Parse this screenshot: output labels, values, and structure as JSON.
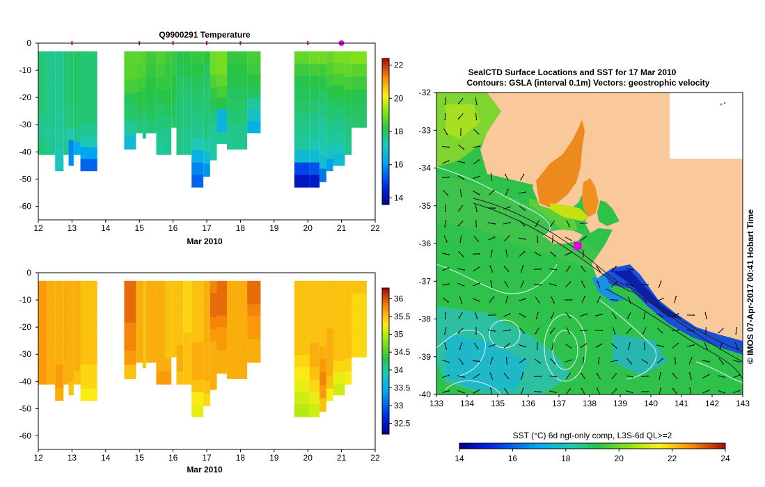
{
  "chart_data": [
    {
      "type": "heatmap",
      "title": "Q9900291  Temperature",
      "xlabel": "Mar 2010",
      "ylabel": "",
      "x_ticks": [
        "12",
        "13",
        "14",
        "15",
        "16",
        "17",
        "18",
        "19",
        "20",
        "21",
        "22"
      ],
      "y_ticks": [
        "0",
        "-10",
        "-20",
        "-30",
        "-40",
        "-50",
        "-60"
      ],
      "xlim": [
        12,
        22
      ],
      "ylim": [
        -65,
        0
      ],
      "profile_markers_day": [
        13,
        15,
        16,
        17,
        18,
        20,
        21
      ],
      "colorbar": {
        "ticks": [
          "14",
          "16",
          "18",
          "20",
          "22"
        ],
        "range": [
          13.6,
          22.4
        ]
      },
      "profiles": [
        {
          "x0": 12.0,
          "x1": 12.25,
          "bottom": -41,
          "values": [
            17.8,
            17.8,
            17.8,
            17.8,
            17.8,
            17.6,
            17.6,
            17.8
          ]
        },
        {
          "x0": 12.25,
          "x1": 12.5,
          "bottom": -41,
          "values": [
            17.6,
            17.6,
            17.6,
            17.6,
            17.6,
            17.6,
            17.5,
            17.6
          ]
        },
        {
          "x0": 12.5,
          "x1": 12.75,
          "bottom": -47,
          "values": [
            17.6,
            17.6,
            17.6,
            17.6,
            17.6,
            17.5,
            17.5,
            17.5,
            17.3,
            17.2
          ]
        },
        {
          "x0": 12.75,
          "x1": 12.9,
          "bottom": -41,
          "values": [
            17.8,
            17.8,
            17.8,
            17.8,
            17.7,
            17.7,
            17.5,
            17.6
          ]
        },
        {
          "x0": 12.9,
          "x1": 13.05,
          "bottom": -45,
          "values": [
            17.9,
            17.9,
            17.9,
            17.9,
            17.8,
            17.8,
            17.4,
            15.8,
            15.9
          ]
        },
        {
          "x0": 13.05,
          "x1": 13.25,
          "bottom": -41,
          "values": [
            17.9,
            17.9,
            17.9,
            17.9,
            17.8,
            17.8,
            17.6,
            16.3
          ]
        },
        {
          "x0": 13.25,
          "x1": 13.75,
          "bottom": -47,
          "values": [
            17.8,
            17.8,
            17.8,
            17.8,
            17.8,
            17.8,
            17.6,
            17.3,
            16.2,
            15.4
          ]
        },
        {
          "x0": 14.55,
          "x1": 14.9,
          "bottom": -39,
          "values": [
            18.7,
            18.7,
            18.5,
            18.0,
            17.9,
            17.5,
            16.8
          ]
        },
        {
          "x0": 14.9,
          "x1": 15.1,
          "bottom": -33,
          "values": [
            18.7,
            18.6,
            18.4,
            18.2,
            18.0,
            17.8
          ]
        },
        {
          "x0": 15.1,
          "x1": 15.2,
          "bottom": -35,
          "values": [
            18.6,
            18.6,
            18.4,
            18.2,
            18.0,
            17.8,
            17.6
          ]
        },
        {
          "x0": 15.2,
          "x1": 15.5,
          "bottom": -33,
          "values": [
            18.4,
            18.3,
            18.2,
            18.1,
            18.0,
            17.8
          ]
        },
        {
          "x0": 15.5,
          "x1": 15.75,
          "bottom": -41,
          "values": [
            18.6,
            18.5,
            18.3,
            18.1,
            17.9,
            17.8,
            17.6,
            17.5
          ]
        },
        {
          "x0": 15.75,
          "x1": 15.95,
          "bottom": -41,
          "values": [
            18.4,
            18.3,
            18.3,
            18.2,
            18.0,
            17.8,
            17.6,
            17.6
          ]
        },
        {
          "x0": 15.95,
          "x1": 16.1,
          "bottom": -31,
          "values": [
            18.3,
            18.3,
            18.2,
            18.1,
            18.0,
            17.9
          ]
        },
        {
          "x0": 16.1,
          "x1": 16.3,
          "bottom": -41,
          "values": [
            18.1,
            18.0,
            17.9,
            17.9,
            17.8,
            17.8,
            17.7,
            17.6
          ]
        },
        {
          "x0": 16.3,
          "x1": 16.55,
          "bottom": -41,
          "values": [
            18.2,
            18.1,
            17.9,
            17.8,
            17.7,
            17.7,
            17.6,
            17.6
          ]
        },
        {
          "x0": 16.55,
          "x1": 16.9,
          "bottom": -53,
          "values": [
            18.3,
            18.2,
            18.0,
            17.9,
            17.8,
            17.7,
            17.6,
            17.3,
            16.5,
            15.8,
            15.4
          ]
        },
        {
          "x0": 16.9,
          "x1": 17.1,
          "bottom": -49,
          "values": [
            18.2,
            18.0,
            17.9,
            17.8,
            17.8,
            17.8,
            17.7,
            17.4,
            16.8,
            16.0
          ]
        },
        {
          "x0": 17.1,
          "x1": 17.3,
          "bottom": -43,
          "values": [
            18.9,
            18.9,
            18.6,
            18.3,
            18.0,
            17.7,
            17.5,
            17.5,
            17.4
          ]
        },
        {
          "x0": 17.3,
          "x1": 17.6,
          "bottom": -37,
          "values": [
            19.0,
            19.0,
            18.8,
            18.5,
            18.2,
            16.6,
            16.6,
            17.5
          ]
        },
        {
          "x0": 17.6,
          "x1": 18.2,
          "bottom": -39,
          "values": [
            18.3,
            18.2,
            18.1,
            18.0,
            17.9,
            17.8,
            17.6,
            17.6
          ]
        },
        {
          "x0": 18.2,
          "x1": 18.6,
          "bottom": -33,
          "values": [
            18.5,
            18.4,
            18.2,
            18.0,
            17.5,
            17.0,
            16.5
          ]
        },
        {
          "x0": 19.6,
          "x1": 20.05,
          "bottom": -53,
          "values": [
            18.8,
            18.4,
            18.1,
            18.0,
            17.9,
            17.7,
            17.6,
            17.5,
            16.8,
            15.0,
            14.2
          ]
        },
        {
          "x0": 20.05,
          "x1": 20.35,
          "bottom": -53,
          "values": [
            18.9,
            18.5,
            18.2,
            18.0,
            17.8,
            17.6,
            17.5,
            17.3,
            16.8,
            15.2,
            14.3
          ]
        },
        {
          "x0": 20.35,
          "x1": 20.55,
          "bottom": -51,
          "values": [
            18.9,
            18.4,
            18.1,
            17.9,
            17.7,
            17.5,
            17.4,
            17.3,
            16.9,
            15.6
          ]
        },
        {
          "x0": 20.55,
          "x1": 20.75,
          "bottom": -47,
          "values": [
            18.8,
            18.6,
            18.4,
            18.1,
            17.9,
            17.8,
            17.6,
            17.5,
            17.1,
            16.1
          ]
        },
        {
          "x0": 20.75,
          "x1": 21.1,
          "bottom": -45,
          "values": [
            19.0,
            18.8,
            18.5,
            18.2,
            18.0,
            17.8,
            17.6,
            17.5,
            17.2,
            16.8
          ]
        },
        {
          "x0": 21.1,
          "x1": 21.3,
          "bottom": -41,
          "values": [
            19.0,
            18.8,
            18.5,
            18.2,
            18.0,
            17.8,
            17.7,
            17.6
          ]
        },
        {
          "x0": 21.3,
          "x1": 21.75,
          "bottom": -31,
          "values": [
            19.1,
            18.7,
            18.4,
            18.1,
            18.0,
            17.9
          ]
        }
      ]
    },
    {
      "type": "heatmap",
      "title": "",
      "xlabel": "Mar 2010",
      "ylabel": "",
      "x_ticks": [
        "12",
        "13",
        "14",
        "15",
        "16",
        "17",
        "18",
        "19",
        "20",
        "21",
        "22"
      ],
      "y_ticks": [
        "0",
        "-10",
        "-20",
        "-30",
        "-40",
        "-50",
        "-60"
      ],
      "xlim": [
        12,
        22
      ],
      "ylim": [
        -65,
        0
      ],
      "colorbar": {
        "ticks": [
          "32.5",
          "33",
          "33.5",
          "34",
          "34.5",
          "35",
          "35.5",
          "36"
        ],
        "range": [
          32.2,
          36.3
        ]
      },
      "profiles": [
        {
          "x0": 12.0,
          "x1": 12.25,
          "bottom": -41,
          "values": [
            35.7,
            35.7,
            35.7,
            35.7,
            35.7,
            35.7,
            35.7,
            35.7
          ]
        },
        {
          "x0": 12.25,
          "x1": 12.5,
          "bottom": -41,
          "values": [
            35.6,
            35.6,
            35.6,
            35.6,
            35.6,
            35.6,
            35.6,
            35.6
          ]
        },
        {
          "x0": 12.5,
          "x1": 12.75,
          "bottom": -47,
          "values": [
            35.6,
            35.6,
            35.6,
            35.6,
            35.6,
            35.6,
            35.6,
            35.7,
            35.7,
            35.6
          ]
        },
        {
          "x0": 12.75,
          "x1": 12.9,
          "bottom": -41,
          "values": [
            35.6,
            35.6,
            35.6,
            35.6,
            35.6,
            35.6,
            35.6,
            35.6
          ]
        },
        {
          "x0": 12.9,
          "x1": 13.05,
          "bottom": -45,
          "values": [
            35.6,
            35.6,
            35.6,
            35.6,
            35.6,
            35.6,
            35.6,
            35.6,
            35.5
          ]
        },
        {
          "x0": 13.05,
          "x1": 13.25,
          "bottom": -41,
          "values": [
            35.6,
            35.6,
            35.6,
            35.6,
            35.6,
            35.6,
            35.6,
            35.5
          ]
        },
        {
          "x0": 13.25,
          "x1": 13.75,
          "bottom": -47,
          "values": [
            35.5,
            35.5,
            35.5,
            35.5,
            35.5,
            35.5,
            35.5,
            35.4,
            35.4,
            35.3
          ]
        },
        {
          "x0": 14.55,
          "x1": 14.9,
          "bottom": -39,
          "values": [
            35.9,
            35.9,
            35.9,
            35.8,
            35.8,
            35.7,
            35.5
          ]
        },
        {
          "x0": 14.9,
          "x1": 15.1,
          "bottom": -33,
          "values": [
            35.6,
            35.6,
            35.6,
            35.6,
            35.6,
            35.6
          ]
        },
        {
          "x0": 15.1,
          "x1": 15.2,
          "bottom": -35,
          "values": [
            35.5,
            35.5,
            35.5,
            35.5,
            35.5,
            35.5,
            35.5
          ]
        },
        {
          "x0": 15.2,
          "x1": 15.5,
          "bottom": -33,
          "values": [
            35.6,
            35.6,
            35.6,
            35.6,
            35.6,
            35.6
          ]
        },
        {
          "x0": 15.5,
          "x1": 15.75,
          "bottom": -41,
          "values": [
            35.6,
            35.6,
            35.6,
            35.6,
            35.6,
            35.6,
            35.6,
            35.7
          ]
        },
        {
          "x0": 15.75,
          "x1": 15.95,
          "bottom": -41,
          "values": [
            35.5,
            35.5,
            35.5,
            35.5,
            35.5,
            35.5,
            35.6,
            35.7
          ]
        },
        {
          "x0": 15.95,
          "x1": 16.1,
          "bottom": -31,
          "values": [
            35.5,
            35.5,
            35.5,
            35.5,
            35.5,
            35.5
          ]
        },
        {
          "x0": 16.1,
          "x1": 16.3,
          "bottom": -41,
          "values": [
            35.5,
            35.5,
            35.5,
            35.5,
            35.5,
            35.6,
            35.6,
            35.5
          ]
        },
        {
          "x0": 16.3,
          "x1": 16.55,
          "bottom": -41,
          "values": [
            35.4,
            35.4,
            35.4,
            35.4,
            35.5,
            35.5,
            35.5,
            35.5
          ]
        },
        {
          "x0": 16.55,
          "x1": 16.9,
          "bottom": -53,
          "values": [
            35.5,
            35.5,
            35.5,
            35.5,
            35.5,
            35.6,
            35.6,
            35.6,
            35.5,
            35.3,
            35.2
          ]
        },
        {
          "x0": 16.9,
          "x1": 17.1,
          "bottom": -49,
          "values": [
            35.6,
            35.6,
            35.6,
            35.6,
            35.6,
            35.6,
            35.6,
            35.6,
            35.5,
            35.4
          ]
        },
        {
          "x0": 17.1,
          "x1": 17.3,
          "bottom": -43,
          "values": [
            35.8,
            35.9,
            35.9,
            35.8,
            35.7,
            35.6,
            35.6,
            35.6,
            35.6
          ]
        },
        {
          "x0": 17.3,
          "x1": 17.6,
          "bottom": -37,
          "values": [
            35.9,
            35.9,
            35.9,
            35.8,
            35.7,
            35.7,
            35.6,
            35.6
          ]
        },
        {
          "x0": 17.6,
          "x1": 18.2,
          "bottom": -39,
          "values": [
            35.6,
            35.6,
            35.6,
            35.6,
            35.6,
            35.6,
            35.6,
            35.6
          ]
        },
        {
          "x0": 18.2,
          "x1": 18.6,
          "bottom": -33,
          "values": [
            35.9,
            35.9,
            35.8,
            35.7,
            35.7,
            35.6,
            35.6
          ]
        },
        {
          "x0": 19.6,
          "x1": 20.05,
          "bottom": -53,
          "values": [
            35.5,
            35.5,
            35.5,
            35.5,
            35.5,
            35.5,
            35.4,
            35.3,
            35.2,
            35.1,
            35.0
          ]
        },
        {
          "x0": 20.05,
          "x1": 20.35,
          "bottom": -53,
          "values": [
            35.5,
            35.5,
            35.5,
            35.5,
            35.5,
            35.6,
            35.6,
            35.5,
            35.4,
            35.2,
            35.1
          ]
        },
        {
          "x0": 20.35,
          "x1": 20.55,
          "bottom": -51,
          "values": [
            35.5,
            35.5,
            35.5,
            35.5,
            35.5,
            35.6,
            35.7,
            35.8,
            35.7,
            35.5
          ]
        },
        {
          "x0": 20.55,
          "x1": 20.75,
          "bottom": -47,
          "values": [
            35.5,
            35.5,
            35.5,
            35.5,
            35.6,
            35.6,
            35.6,
            35.6,
            35.5,
            35.3
          ]
        },
        {
          "x0": 20.75,
          "x1": 21.1,
          "bottom": -45,
          "values": [
            35.5,
            35.5,
            35.5,
            35.5,
            35.5,
            35.5,
            35.5,
            35.4,
            35.2,
            35.1
          ]
        },
        {
          "x0": 21.1,
          "x1": 21.3,
          "bottom": -41,
          "values": [
            35.5,
            35.5,
            35.5,
            35.5,
            35.5,
            35.5,
            35.4,
            35.3
          ]
        },
        {
          "x0": 21.3,
          "x1": 21.75,
          "bottom": -31,
          "values": [
            35.5,
            35.4,
            35.4,
            35.4,
            35.4,
            35.4
          ]
        }
      ]
    },
    {
      "type": "heatmap",
      "title_line1": "SealCTD Surface Locations and SST for 17 Mar 2010",
      "title_line2": "Contours: GSLA (interval 0.1m) Vectors: geostrophic velocity",
      "x_ticks": [
        "133",
        "134",
        "135",
        "136",
        "137",
        "138",
        "139",
        "140",
        "141",
        "142",
        "143"
      ],
      "y_ticks": [
        "-32",
        "-33",
        "-34",
        "-35",
        "-36",
        "-37",
        "-38",
        "-39",
        "-40"
      ],
      "xlim": [
        133,
        143
      ],
      "ylim": [
        -40,
        -32
      ],
      "side_label": "© IMOS 07-Apr-2017 00:41 Hobart Time",
      "colorbar_label": "SST (°C) 6d ngt-only comp, L3S-6d QL>=2",
      "colorbar": {
        "ticks": [
          "14",
          "16",
          "18",
          "20",
          "22",
          "24"
        ],
        "range": [
          14,
          24
        ]
      },
      "seal_location": {
        "lon": 137.6,
        "lat": -36.05
      },
      "land_color": "#FAC99B"
    }
  ],
  "colors": {
    "marker": "#E000E0",
    "land": "#FAC99B",
    "axis": "#000000"
  }
}
